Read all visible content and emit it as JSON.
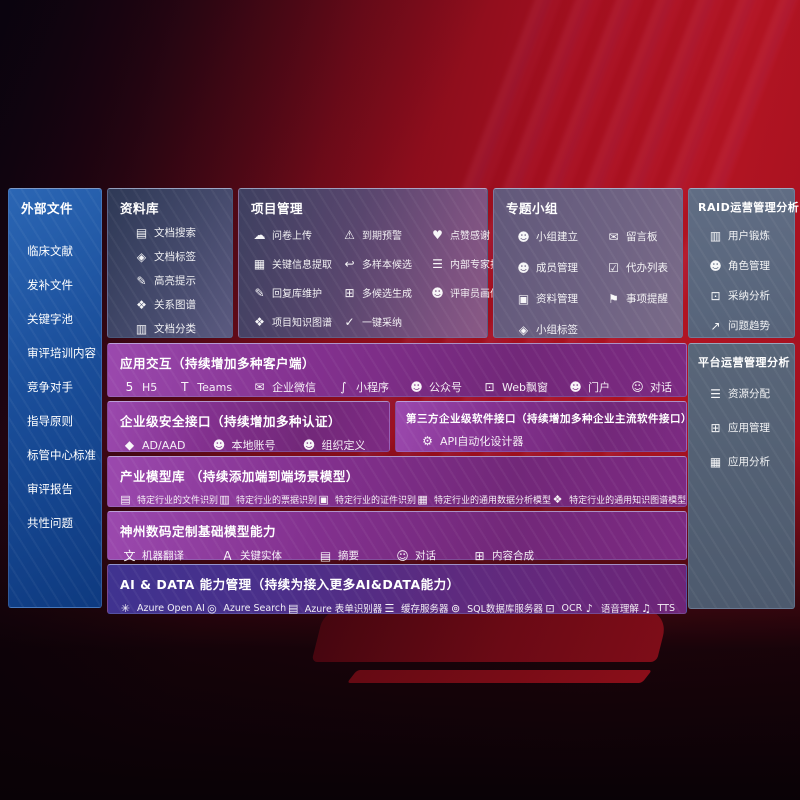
{
  "colors": {
    "background_red": "#a81120",
    "sidebar_blue": "#1a4e9a",
    "panel_slate": "#454a6c",
    "panel_gray_blue": "#5b687e",
    "row_purple": "#82308e",
    "row_indigo": "#43338e",
    "text": "#ffffff"
  },
  "sidebar": {
    "title": "外部文件",
    "items": [
      "临床文献",
      "发补文件",
      "关键字池",
      "审评培训内容",
      "竞争对手",
      "指导原则",
      "标管中心标准",
      "审评报告",
      "共性问题"
    ]
  },
  "library": {
    "title": "资料库",
    "items": [
      {
        "icon": "doc-search-icon",
        "glyph": "▤",
        "label": "文档搜索"
      },
      {
        "icon": "doc-tag-icon",
        "glyph": "◈",
        "label": "文档标签"
      },
      {
        "icon": "highlight-pen-icon",
        "glyph": "✎",
        "label": "高亮提示"
      },
      {
        "icon": "relation-graph-icon",
        "glyph": "❖",
        "label": "关系图谱"
      },
      {
        "icon": "doc-classify-icon",
        "glyph": "▥",
        "label": "文档分类"
      }
    ]
  },
  "project": {
    "title": "项目管理",
    "items": [
      {
        "icon": "cloud-upload-icon",
        "glyph": "☁",
        "label": "问卷上传"
      },
      {
        "icon": "alarm-warning-icon",
        "glyph": "⚠",
        "label": "到期预警"
      },
      {
        "icon": "thumbs-up-icon",
        "glyph": "♥",
        "label": "点赞感谢"
      },
      {
        "icon": "info-extract-icon",
        "glyph": "▦",
        "label": "关键信息提取"
      },
      {
        "icon": "reply-arrow-icon",
        "glyph": "↩",
        "label": "多样本候选"
      },
      {
        "icon": "ranking-icon",
        "glyph": "☰",
        "label": "内部专家排名"
      },
      {
        "icon": "pen-icon",
        "glyph": "✎",
        "label": "回复库维护"
      },
      {
        "icon": "generate-grid-icon",
        "glyph": "⊞",
        "label": "多候选生成"
      },
      {
        "icon": "person-icon",
        "glyph": "☻",
        "label": "评审员画像"
      },
      {
        "icon": "knowledge-graph-icon",
        "glyph": "❖",
        "label": "项目知识图谱"
      },
      {
        "icon": "adopt-check-icon",
        "glyph": "✓",
        "label": "一键采纳"
      }
    ]
  },
  "groups": {
    "title": "专题小组",
    "items": [
      {
        "icon": "group-people-icon",
        "glyph": "☻",
        "label": "小组建立"
      },
      {
        "icon": "bbs-board-icon",
        "glyph": "✉",
        "label": "留言板"
      },
      {
        "icon": "member-add-icon",
        "glyph": "☻",
        "label": "成员管理"
      },
      {
        "icon": "todo-clipboard-icon",
        "glyph": "☑",
        "label": "代办列表"
      },
      {
        "icon": "archive-icon",
        "glyph": "▣",
        "label": "资料管理"
      },
      {
        "icon": "bell-icon",
        "glyph": "⚑",
        "label": "事项提醒"
      },
      {
        "icon": "tag-icon",
        "glyph": "◈",
        "label": "小组标签"
      }
    ]
  },
  "raid": {
    "title": "RAID运营管理分析",
    "items": [
      {
        "icon": "id-card-icon",
        "glyph": "▥",
        "label": "用户锻炼"
      },
      {
        "icon": "role-people-icon",
        "glyph": "☻",
        "label": "角色管理"
      },
      {
        "icon": "chat-analysis-icon",
        "glyph": "⊡",
        "label": "采纳分析"
      },
      {
        "icon": "trend-chart-icon",
        "glyph": "↗",
        "label": "问题趋势"
      }
    ]
  },
  "platform": {
    "title": "平台运营管理分析",
    "items": [
      {
        "icon": "resource-list-icon",
        "glyph": "☰",
        "label": "资源分配"
      },
      {
        "icon": "app-grid-icon",
        "glyph": "⊞",
        "label": "应用管理"
      },
      {
        "icon": "app-chart-icon",
        "glyph": "▦",
        "label": "应用分析"
      }
    ]
  },
  "interaction": {
    "title": "应用交互（持续增加多种客户端）",
    "items": [
      {
        "icon": "h5-icon",
        "glyph": "5",
        "label": "H5"
      },
      {
        "icon": "teams-icon",
        "glyph": "T",
        "label": "Teams"
      },
      {
        "icon": "wecom-chat-icon",
        "glyph": "✉",
        "label": "企业微信"
      },
      {
        "icon": "miniprogram-icon",
        "glyph": "∫",
        "label": "小程序"
      },
      {
        "icon": "official-account-icon",
        "glyph": "☻",
        "label": "公众号"
      },
      {
        "icon": "web-window-icon",
        "glyph": "⊡",
        "label": "Web飘窗"
      },
      {
        "icon": "portal-person-icon",
        "glyph": "☻",
        "label": "门户"
      },
      {
        "icon": "dialog-people-icon",
        "glyph": "☺",
        "label": "对话"
      }
    ]
  },
  "security": {
    "title": "企业级安全接口（持续增加多种认证）",
    "items": [
      {
        "icon": "ad-diamond-icon",
        "glyph": "◆",
        "label": "AD/AAD"
      },
      {
        "icon": "local-account-icon",
        "glyph": "☻",
        "label": "本地账号"
      },
      {
        "icon": "org-define-icon",
        "glyph": "☻",
        "label": "组织定义"
      }
    ]
  },
  "thirdparty": {
    "title": "第三方企业级软件接口（持续增加多种企业主流软件接口）",
    "items": [
      {
        "icon": "api-gear-icon",
        "glyph": "⚙",
        "label": "API自动化设计器"
      }
    ]
  },
  "models": {
    "title": "产业模型库 （持续添加端到端场景模型）",
    "items": [
      {
        "icon": "file-recog-icon",
        "glyph": "▤",
        "label": "特定行业的文件识别"
      },
      {
        "icon": "invoice-recog-icon",
        "glyph": "▥",
        "label": "特定行业的票据识别"
      },
      {
        "icon": "cert-recog-icon",
        "glyph": "▣",
        "label": "特定行业的证件识别"
      },
      {
        "icon": "data-model-icon",
        "glyph": "▦",
        "label": "特定行业的通用数据分析模型"
      },
      {
        "icon": "kg-model-icon",
        "glyph": "❖",
        "label": "特定行业的通用知识图谱模型"
      }
    ]
  },
  "base_models": {
    "title": "神州数码定制基础模型能力",
    "items": [
      {
        "icon": "translate-icon",
        "glyph": "文",
        "label": "机器翻译"
      },
      {
        "icon": "entity-shield-icon",
        "glyph": "A",
        "label": "关键实体"
      },
      {
        "icon": "summary-doc-icon",
        "glyph": "▤",
        "label": "摘要"
      },
      {
        "icon": "chat-bubble-icon",
        "glyph": "☺",
        "label": "对话"
      },
      {
        "icon": "content-synth-icon",
        "glyph": "⊞",
        "label": "内容合成"
      }
    ]
  },
  "ai_data": {
    "title": "AI & DATA 能力管理（持续为接入更多AI&DATA能力）",
    "items": [
      {
        "icon": "azure-openai-icon",
        "glyph": "✳",
        "label": "Azure Open AI"
      },
      {
        "icon": "azure-search-icon",
        "glyph": "◎",
        "label": "Azure Search"
      },
      {
        "icon": "form-recognizer-icon",
        "glyph": "▤",
        "label": "Azure 表单识别器"
      },
      {
        "icon": "cache-server-icon",
        "glyph": "☰",
        "label": "缓存服务器"
      },
      {
        "icon": "sql-db-icon",
        "glyph": "⊚",
        "label": "SQL数据库服务器"
      },
      {
        "icon": "ocr-icon",
        "glyph": "⊡",
        "label": "OCR"
      },
      {
        "icon": "speech-icon",
        "glyph": "♪",
        "label": "语音理解"
      },
      {
        "icon": "tts-icon",
        "glyph": "♫",
        "label": "TTS"
      }
    ]
  }
}
